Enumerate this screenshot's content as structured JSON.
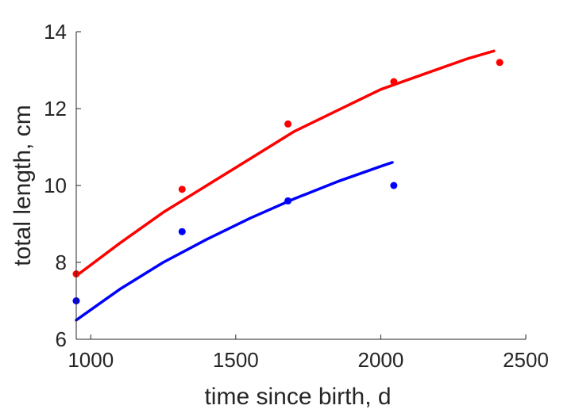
{
  "chart_data": {
    "type": "scatter",
    "title": "",
    "xlabel": "time since birth, d",
    "ylabel": "total length, cm",
    "xlim": [
      950,
      2500
    ],
    "ylim": [
      6,
      14
    ],
    "xticks": [
      1000,
      1500,
      2000,
      2500
    ],
    "yticks": [
      6,
      8,
      10,
      12,
      14
    ],
    "grid": false,
    "legend": "none",
    "series": [
      {
        "color": "#ff0000",
        "points": {
          "x": [
            950,
            1315,
            1680,
            2045,
            2410
          ],
          "y": [
            7.7,
            9.9,
            11.6,
            12.7,
            13.2
          ]
        },
        "fit": {
          "x": [
            950,
            1100,
            1250,
            1400,
            1550,
            1700,
            1850,
            2000,
            2150,
            2300,
            2390
          ],
          "y": [
            7.65,
            8.5,
            9.3,
            10.0,
            10.7,
            11.4,
            11.95,
            12.5,
            12.9,
            13.3,
            13.5
          ]
        }
      },
      {
        "color": "#0000ff",
        "points": {
          "x": [
            950,
            1315,
            1680,
            2045
          ],
          "y": [
            7.0,
            8.8,
            9.6,
            10.0
          ]
        },
        "fit": {
          "x": [
            950,
            1100,
            1250,
            1400,
            1550,
            1700,
            1850,
            2000,
            2040
          ],
          "y": [
            6.5,
            7.3,
            8.0,
            8.6,
            9.15,
            9.65,
            10.1,
            10.5,
            10.6
          ]
        }
      }
    ]
  }
}
